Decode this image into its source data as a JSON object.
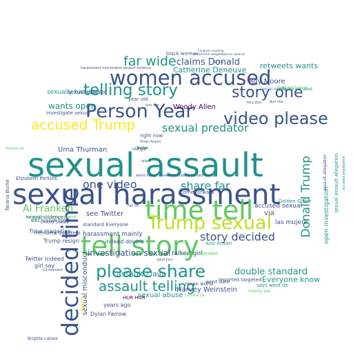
{
  "palette": {
    "purple": "#440154",
    "indigo": "#3b528b",
    "teal": "#21918c",
    "green": "#5ec962",
    "yellow": "#fde725"
  },
  "words": [
    {
      "text": "sexual assault",
      "color": "#21918c"
    },
    {
      "text": "sexual harassment",
      "color": "#3b528b"
    },
    {
      "text": "time tell",
      "color": "#5ec962"
    },
    {
      "text": "tell story",
      "color": "#5ec962"
    },
    {
      "text": "decided time",
      "color": "#3b528b"
    },
    {
      "text": "women accused",
      "color": "#3b528b"
    },
    {
      "text": "Person Year",
      "color": "#3b528b"
    },
    {
      "text": "video please",
      "color": "#3b528b"
    },
    {
      "text": "Trump sexual",
      "color": "#bddf26"
    },
    {
      "text": "please share",
      "color": "#21918c"
    },
    {
      "text": "telling story",
      "color": "#21918c"
    },
    {
      "text": "story one",
      "color": "#3b528b"
    },
    {
      "text": "accused Trump",
      "color": "#fde725"
    },
    {
      "text": "assault telling",
      "color": "#21918c"
    },
    {
      "text": "far wide",
      "color": "#21918c"
    },
    {
      "text": "one video",
      "color": "#3b528b"
    },
    {
      "text": "sexual predator",
      "color": "#21918c"
    },
    {
      "text": "share far",
      "color": "#21918c"
    },
    {
      "text": "story decided",
      "color": "#3b528b"
    },
    {
      "text": "Donald Trump",
      "color": "#21918c"
    },
    {
      "text": "claims Donald",
      "color": "#3b528b"
    },
    {
      "text": "Catherine Deneuve",
      "color": "#21918c"
    },
    {
      "text": "wants open",
      "color": "#21918c"
    },
    {
      "text": "retweets wants",
      "color": "#21918c"
    },
    {
      "text": "Al Franken",
      "color": "#5ec962"
    },
    {
      "text": "investigation sexual",
      "color": "#3b528b"
    },
    {
      "text": "double standard",
      "color": "#21918c"
    },
    {
      "text": "Everyone know",
      "color": "#21918c"
    },
    {
      "text": "sexually harassed",
      "color": "#21918c"
    },
    {
      "text": "sexual abuse",
      "color": "#21918c"
    },
    {
      "text": "assault claim",
      "color": "#21918c"
    },
    {
      "text": "Roy Moore",
      "color": "#3b528b"
    },
    {
      "text": "Woody Allen",
      "color": "#440154"
    },
    {
      "text": "Uma Thurman",
      "color": "#3b528b"
    },
    {
      "text": "Harvey Weinstein",
      "color": "#3b528b"
    },
    {
      "text": "Dylan Farrow",
      "color": "#3b528b"
    },
    {
      "text": "see Twitter",
      "color": "#3b528b"
    },
    {
      "text": "harassment mainly",
      "color": "#3b528b"
    },
    {
      "text": "talked girl",
      "color": "#3b528b"
    },
    {
      "text": "las mujere",
      "color": "#3b528b"
    },
    {
      "text": "accused sexual",
      "color": "#3b528b"
    },
    {
      "text": "open investigation",
      "color": "#21918c"
    },
    {
      "text": "sexual misconduct",
      "color": "#3b528b"
    },
    {
      "text": "sexual abuser",
      "color": "#3b528b"
    },
    {
      "text": "exclusive told",
      "color": "#3b528b"
    },
    {
      "text": "Time magazine",
      "color": "#3b528b"
    },
    {
      "text": "Trump resign",
      "color": "#3b528b"
    },
    {
      "text": "indeed double",
      "color": "#3b528b"
    },
    {
      "text": "Twitter indeed",
      "color": "#3b528b"
    },
    {
      "text": "girl say",
      "color": "#3b528b"
    },
    {
      "text": "years ago",
      "color": "#3b528b"
    },
    {
      "text": "black woman",
      "color": "#3b528b"
    },
    {
      "text": "year old",
      "color": "#3b528b"
    },
    {
      "text": "sexual violence",
      "color": "#3b528b"
    },
    {
      "text": "members Congress",
      "color": "#3b528b"
    },
    {
      "text": "come forward",
      "color": "#3b528b"
    },
    {
      "text": "Aziz Ansari",
      "color": "#21918c"
    },
    {
      "text": "Golden Globe",
      "color": "#21918c"
    },
    {
      "text": "reported targeted",
      "color": "#3b528b"
    },
    {
      "text": "went date",
      "color": "#3b528b"
    },
    {
      "text": "says went de",
      "color": "#21918c"
    },
    {
      "text": "Silence Breaker",
      "color": "#5ec962"
    },
    {
      "text": "mean world",
      "color": "#3b528b"
    },
    {
      "text": "Elizabeth Perkins",
      "color": "#3b528b"
    },
    {
      "text": "Tarana Burke",
      "color": "#3b528b"
    },
    {
      "text": "investigate sexual",
      "color": "#3b528b"
    },
    {
      "text": "standard Everyone",
      "color": "#3b528b"
    },
    {
      "text": "targeted harassment",
      "color": "#5ec962"
    },
    {
      "text": "right now",
      "color": "#3b528b"
    },
    {
      "text": "HUR HUR",
      "color": "#440154"
    },
    {
      "text": "Brigitte Lahaie",
      "color": "#3b528b"
    },
    {
      "text": "social media",
      "color": "#21918c"
    },
    {
      "text": "living accused",
      "color": "#21918c"
    },
    {
      "text": "date exclusive",
      "color": "#5ec962"
    },
    {
      "text": "United States",
      "color": "#3b528b"
    },
    {
      "text": "harassment misconduct assault violence",
      "color": "#3b528b"
    },
    {
      "text": "Time Person",
      "color": "#3b528b"
    },
    {
      "text": "old girl",
      "color": "#5ec962"
    },
    {
      "text": "Twitter",
      "color": "#3b528b"
    },
    {
      "text": "sexual assault allegation",
      "color": "#21918c"
    },
    {
      "text": "assault allegation",
      "color": "#3b528b"
    },
    {
      "text": "accused peadophile",
      "color": "#21918c"
    },
    {
      "text": "world living",
      "color": "#3b528b"
    },
    {
      "text": "allowed President",
      "color": "#3b528b"
    },
    {
      "text": "Donald Trump",
      "color": "#3b528b"
    },
    {
      "text": "Congress counting",
      "color": "#3b528b"
    },
    {
      "text": "harassment allegation",
      "color": "#3b528b"
    },
    {
      "text": "fire day",
      "color": "#3b528b"
    },
    {
      "text": "via",
      "color": "#3b528b"
    },
    {
      "text": "mainly sex",
      "color": "#5ec962"
    },
    {
      "text": "latest",
      "color": "#3b528b"
    },
    {
      "text": "James",
      "color": "#fde725"
    },
    {
      "text": "Caroline De",
      "color": "#5ec962"
    },
    {
      "text": "tory dun",
      "color": "#3b528b"
    },
    {
      "text": "Ce moment",
      "color": "#3b528b"
    },
    {
      "text": "far th",
      "color": "#3b528b"
    },
    {
      "text": "dun visi",
      "color": "#3b528b"
    },
    {
      "text": "Victime de",
      "color": "#5ec962"
    },
    {
      "text": "Lanuce souance",
      "color": "#3b528b"
    },
    {
      "text": "peut jour",
      "color": "#3b528b"
    },
    {
      "text": "lors dun",
      "color": "#3b528b"
    },
    {
      "text": "old girl",
      "color": "#3b528b"
    }
  ]
}
